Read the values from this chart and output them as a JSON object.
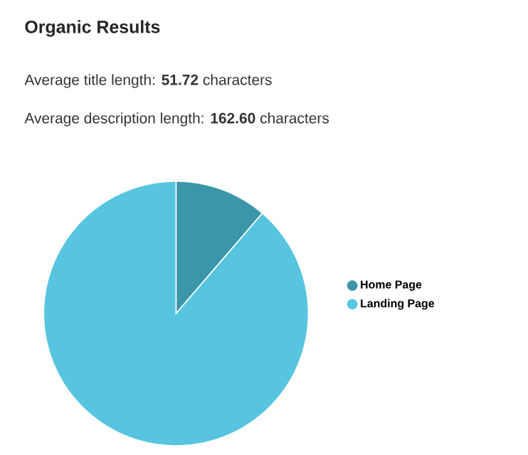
{
  "chart_data": {
    "type": "pie",
    "title": "Organic Results",
    "subtitle": "Average title length: **51.72** characters",
    "annotations": [
      "Average description length: **162.60** characters"
    ],
    "categories": [
      "Home Page",
      "Landing Page"
    ],
    "values": [
      11.3,
      88.7
    ],
    "colors": [
      "#3a96a8",
      "#57c5e0"
    ],
    "legend": "right"
  }
}
